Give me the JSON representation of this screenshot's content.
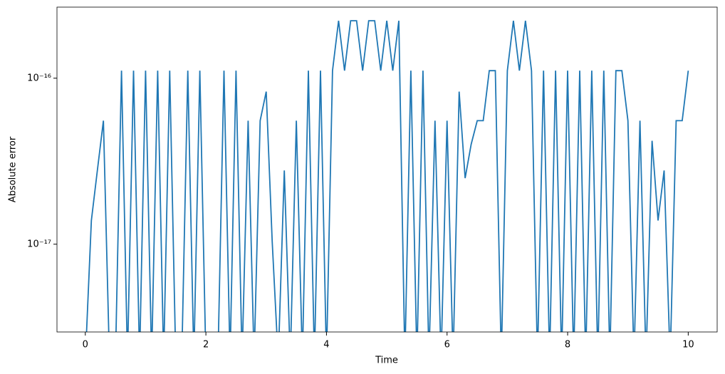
{
  "chart_data": {
    "type": "line",
    "x_label": "Time",
    "y_label": "Absolute error",
    "log_y": true,
    "color": "#1f77b4",
    "xlim": [
      -0.47,
      10.48
    ],
    "xticks": [
      0,
      2,
      4,
      6,
      8,
      10
    ],
    "ylim": [
      2.96e-18,
      2.68e-16
    ],
    "yticks": [
      {
        "value": 1e-17,
        "label": "10⁻¹⁷"
      },
      {
        "value": 1e-16,
        "label": "10⁻¹⁶"
      }
    ],
    "x": [
      0,
      0.1,
      0.2,
      0.3,
      0.4,
      0.5,
      0.6,
      0.7,
      0.8,
      0.9,
      1,
      1.1,
      1.2,
      1.3,
      1.4,
      1.5,
      1.6,
      1.7,
      1.8,
      1.9,
      2,
      2.1,
      2.2,
      2.3,
      2.4,
      2.5,
      2.6,
      2.7,
      2.8,
      2.9,
      3,
      3.1,
      3.2,
      3.3,
      3.4,
      3.5,
      3.6,
      3.7,
      3.8,
      3.9,
      4,
      4.1,
      4.2,
      4.3,
      4.4,
      4.5,
      4.6,
      4.7,
      4.8,
      4.9,
      5,
      5.1,
      5.2,
      5.3,
      5.4,
      5.5,
      5.6,
      5.7,
      5.8,
      5.9,
      6,
      6.1,
      6.2,
      6.3,
      6.4,
      6.5,
      6.6,
      6.7,
      6.8,
      6.9,
      7,
      7.1,
      7.2,
      7.3,
      7.4,
      7.5,
      7.6,
      7.7,
      7.8,
      7.9,
      8,
      8.1,
      8.2,
      8.3,
      8.4,
      8.5,
      8.6,
      8.7,
      8.8,
      8.9,
      9,
      9.1,
      9.2,
      9.3,
      9.4,
      9.5,
      9.6,
      9.7,
      9.8,
      9.9,
      10
    ],
    "values": [
      0,
      1.39e-17,
      2.78e-17,
      5.55e-17,
      0,
      0,
      1.11e-16,
      0,
      1.11e-16,
      0,
      1.11e-16,
      0,
      1.11e-16,
      0,
      1.11e-16,
      0,
      0,
      1.11e-16,
      0,
      1.11e-16,
      0,
      0,
      0,
      1.11e-16,
      0,
      1.11e-16,
      0,
      5.55e-17,
      0,
      5.55e-17,
      8.3e-17,
      1.04e-17,
      0,
      2.78e-17,
      0,
      5.55e-17,
      0,
      1.11e-16,
      0,
      1.11e-16,
      0,
      1.11e-16,
      2.22e-16,
      1.11e-16,
      2.22e-16,
      2.22e-16,
      1.11e-16,
      2.22e-16,
      2.22e-16,
      1.11e-16,
      2.22e-16,
      1.11e-16,
      2.22e-16,
      0,
      1.11e-16,
      0,
      1.11e-16,
      0,
      5.55e-17,
      0,
      5.55e-17,
      0,
      8.3e-17,
      2.5e-17,
      4e-17,
      5.55e-17,
      5.55e-17,
      1.11e-16,
      1.11e-16,
      0,
      1.11e-16,
      2.22e-16,
      1.11e-16,
      2.22e-16,
      1.11e-16,
      0,
      1.11e-16,
      0,
      1.11e-16,
      0,
      1.11e-16,
      0,
      1.11e-16,
      0,
      1.11e-16,
      0,
      1.11e-16,
      0,
      1.11e-16,
      1.11e-16,
      5.55e-17,
      0,
      5.55e-17,
      0,
      4.2e-17,
      1.39e-17,
      2.78e-17,
      0,
      5.55e-17,
      5.55e-17,
      1.11e-16
    ]
  }
}
